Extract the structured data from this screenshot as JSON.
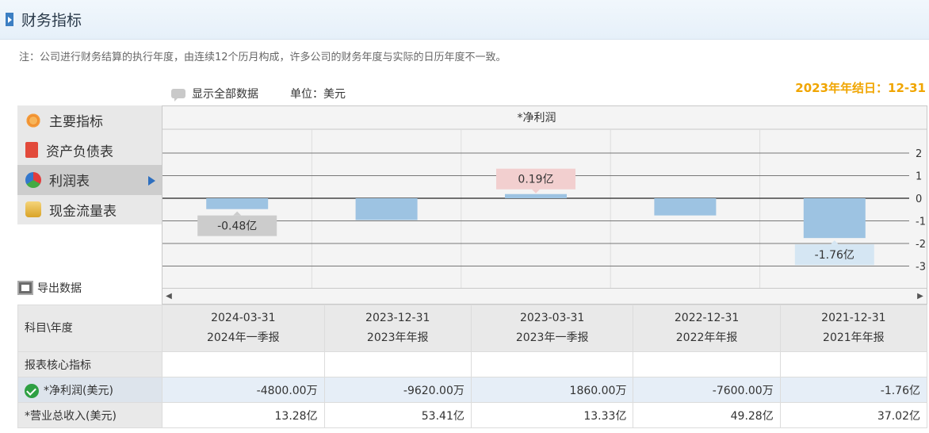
{
  "header": {
    "title": "财务指标"
  },
  "note": "注：公司进行财务结算的执行年度，由连续12个历月构成，许多公司的财务年度与实际的日历年度不一致。",
  "toolbar": {
    "show_all": "显示全部数据",
    "unit": "单位：美元",
    "year_end": "2023年年结日：12-31"
  },
  "sidebar": {
    "items": [
      {
        "label": "主要指标",
        "icon": "gear-sun-icon"
      },
      {
        "label": "资产负债表",
        "icon": "document-icon"
      },
      {
        "label": "利润表",
        "icon": "pie-chart-icon",
        "active": true
      },
      {
        "label": "现金流量表",
        "icon": "coins-icon"
      }
    ]
  },
  "export_label": "导出数据",
  "chart_data": {
    "type": "bar",
    "title": "*净利润",
    "categories": [
      "2024-03-31",
      "2023-12-31",
      "2023-03-31",
      "2022-12-31",
      "2021-12-31"
    ],
    "values": [
      -0.48,
      -0.962,
      0.186,
      -0.76,
      -1.76
    ],
    "unit": "亿",
    "y_ticks": [
      2,
      1,
      0,
      -1,
      -2,
      -3
    ],
    "ylim": [
      -3.5,
      2.5
    ],
    "labels": [
      {
        "index": 0,
        "text": "-0.48亿",
        "color": "#cccccc"
      },
      {
        "index": 2,
        "text": "0.19亿",
        "color": "#f2cfcf"
      },
      {
        "index": 4,
        "text": "-1.76亿",
        "color": "#d5e6f3"
      }
    ],
    "bar_color": "#9dc3e2",
    "grid": true
  },
  "table": {
    "corner": "科目\\年度",
    "columns": [
      {
        "date": "2024-03-31",
        "period": "2024年一季报"
      },
      {
        "date": "2023-12-31",
        "period": "2023年年报"
      },
      {
        "date": "2023-03-31",
        "period": "2023年一季报"
      },
      {
        "date": "2022-12-31",
        "period": "2022年年报"
      },
      {
        "date": "2021-12-31",
        "period": "2021年年报"
      }
    ],
    "section": "报表核心指标",
    "rows": [
      {
        "label": "*净利润(美元)",
        "values": [
          "-4800.00万",
          "-9620.00万",
          "1860.00万",
          "-7600.00万",
          "-1.76亿"
        ]
      },
      {
        "label": "*营业总收入(美元)",
        "values": [
          "13.28亿",
          "53.41亿",
          "13.33亿",
          "49.28亿",
          "37.02亿"
        ]
      }
    ]
  }
}
